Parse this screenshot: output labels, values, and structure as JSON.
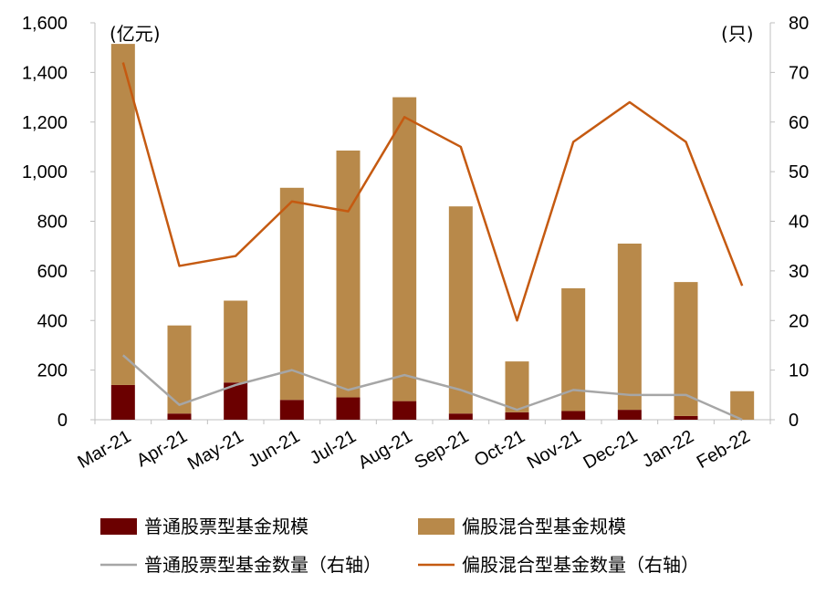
{
  "chart_data": {
    "type": "bar",
    "stacked": true,
    "categories": [
      "Mar-21",
      "Apr-21",
      "May-21",
      "Jun-21",
      "Jul-21",
      "Aug-21",
      "Sep-21",
      "Oct-21",
      "Nov-21",
      "Dec-21",
      "Jan-22",
      "Feb-22"
    ],
    "y_left": {
      "unit_label": "(亿元)",
      "ylim": [
        0,
        1600
      ],
      "ticks": [
        "0",
        "200",
        "400",
        "600",
        "800",
        "1,000",
        "1,200",
        "1,400",
        "1,600"
      ]
    },
    "y_right": {
      "unit_label": "(只)",
      "ylim": [
        0,
        80
      ],
      "ticks": [
        "0",
        "10",
        "20",
        "30",
        "40",
        "50",
        "60",
        "70",
        "80"
      ]
    },
    "series": [
      {
        "name": "普通股票型基金规模",
        "kind": "bar",
        "axis": "left",
        "color": "#6b0000",
        "values": [
          140,
          25,
          150,
          80,
          90,
          75,
          25,
          30,
          35,
          40,
          15,
          0
        ]
      },
      {
        "name": "偏股混合型基金规模",
        "kind": "bar",
        "axis": "left",
        "color": "#b8894a",
        "values": [
          1375,
          355,
          330,
          855,
          995,
          1225,
          835,
          205,
          495,
          670,
          540,
          115
        ]
      },
      {
        "name": "普通股票型基金数量(右轴)",
        "kind": "line",
        "axis": "right",
        "color": "#a6a6a6",
        "values": [
          13,
          3,
          7,
          10,
          6,
          9,
          6,
          2,
          6,
          5,
          5,
          0
        ]
      },
      {
        "name": "偏股混合型基金数量(右轴)",
        "kind": "line",
        "axis": "right",
        "color": "#c55a11",
        "values": [
          72,
          31,
          33,
          44,
          42,
          61,
          55,
          20,
          56,
          64,
          56,
          27
        ]
      }
    ],
    "legend": {
      "position": "bottom",
      "items": [
        {
          "label": "普通股票型基金规模",
          "swatch": "bar",
          "color": "#6b0000"
        },
        {
          "label": "偏股混合型基金规模",
          "swatch": "bar",
          "color": "#b8894a"
        },
        {
          "label": "普通股票型基金数量（右轴）",
          "swatch": "line",
          "color": "#a6a6a6"
        },
        {
          "label": "偏股混合型基金数量（右轴）",
          "swatch": "line",
          "color": "#c55a11"
        }
      ]
    },
    "grid": false
  }
}
